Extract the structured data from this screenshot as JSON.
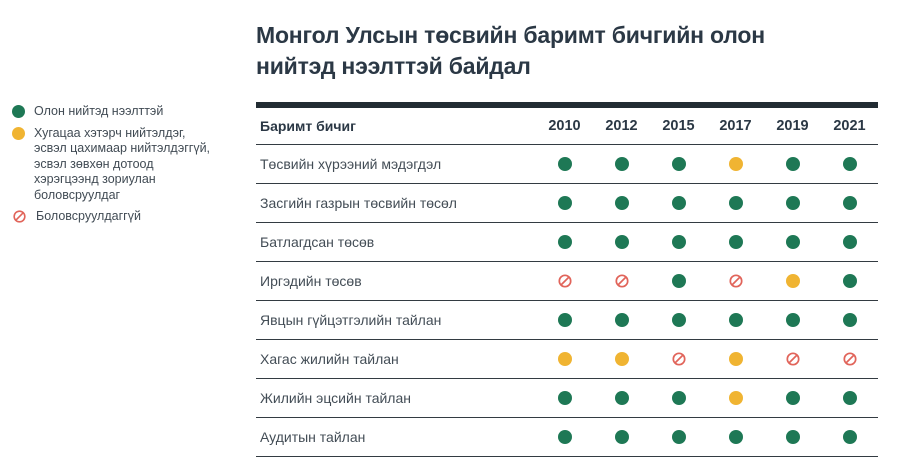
{
  "title": "Монгол Улсын төсвийн баримт бичгийн олон нийтэд нээлттэй байдал",
  "colors": {
    "available": "#1e7855",
    "late": "#f0b432",
    "not_produced": "#e1645a",
    "heading_text": "#2b3845",
    "body_text": "#434d56",
    "rule": "#333b42",
    "top_bar": "#222c33"
  },
  "legend": [
    {
      "status": "available",
      "label": "Олон нийтэд нээлттэй"
    },
    {
      "status": "late",
      "label": "Хугацаа хэтэрч нийтэлдэг, эсвэл цахимаар нийтэлдэггүй, эсвэл зөвхөн дотоод хэрэгцээнд зориулан боловсруулдаг"
    },
    {
      "status": "not_produced",
      "label": "Боловсруулдаггүй"
    }
  ],
  "chart_data": {
    "type": "table",
    "title": "Монгол Улсын төсвийн баримт бичгийн олон нийтэд нээлттэй байдал",
    "row_header": "Баримт бичиг",
    "columns": [
      "2010",
      "2012",
      "2015",
      "2017",
      "2019",
      "2021"
    ],
    "rows": [
      {
        "label": "Төсвийн хүрээний мэдэгдэл",
        "values": [
          "available",
          "available",
          "available",
          "late",
          "available",
          "available"
        ]
      },
      {
        "label": "Засгийн газрын төсвийн төсөл",
        "values": [
          "available",
          "available",
          "available",
          "available",
          "available",
          "available"
        ]
      },
      {
        "label": "Батлагдсан төсөв",
        "values": [
          "available",
          "available",
          "available",
          "available",
          "available",
          "available"
        ]
      },
      {
        "label": "Иргэдийн төсөв",
        "values": [
          "not_produced",
          "not_produced",
          "available",
          "not_produced",
          "late",
          "available"
        ]
      },
      {
        "label": "Явцын гүйцэтгэлийн тайлан",
        "values": [
          "available",
          "available",
          "available",
          "available",
          "available",
          "available"
        ]
      },
      {
        "label": "Хагас жилийн тайлан",
        "values": [
          "late",
          "late",
          "not_produced",
          "late",
          "not_produced",
          "not_produced"
        ]
      },
      {
        "label": "Жилийн эцсийн тайлан",
        "values": [
          "available",
          "available",
          "available",
          "late",
          "available",
          "available"
        ]
      },
      {
        "label": "Аудитын тайлан",
        "values": [
          "available",
          "available",
          "available",
          "available",
          "available",
          "available"
        ]
      }
    ]
  }
}
